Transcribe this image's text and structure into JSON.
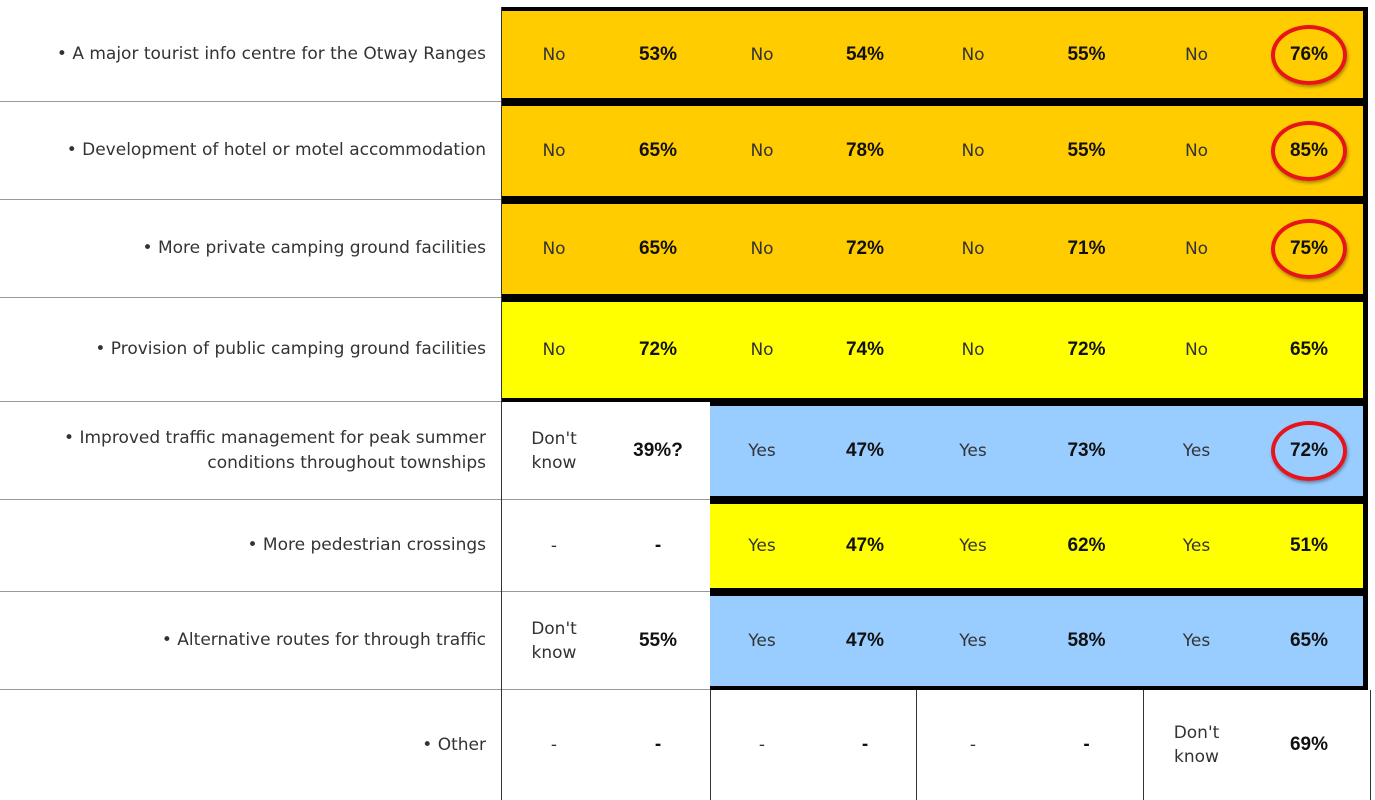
{
  "table": {
    "rows": [
      {
        "label": "• A major tourist info centre for the Otway Ranges",
        "cells": [
          "No",
          "53%",
          "No",
          "54%",
          "No",
          "55%",
          "No",
          "76%"
        ],
        "fill": "#ffcc00",
        "fill_start": 0,
        "circled": true
      },
      {
        "label": "• Development of hotel or motel accommodation",
        "cells": [
          "No",
          "65%",
          "No",
          "78%",
          "No",
          "55%",
          "No",
          "85%"
        ],
        "fill": "#ffcc00",
        "fill_start": 0,
        "circled": true
      },
      {
        "label": "• More private camping ground facilities",
        "cells": [
          "No",
          "65%",
          "No",
          "72%",
          "No",
          "71%",
          "No",
          "75%"
        ],
        "fill": "#ffcc00",
        "fill_start": 0,
        "circled": true
      },
      {
        "label": "• Provision of public camping ground facilities",
        "cells": [
          "No",
          "72%",
          "No",
          "74%",
          "No",
          "72%",
          "No",
          "65%"
        ],
        "fill": "#ffff00",
        "fill_start": 0,
        "circled": false
      },
      {
        "label": "• Improved traffic management for peak summer conditions throughout townships",
        "cells": [
          "Don't know",
          "39%?",
          "Yes",
          "47%",
          "Yes",
          "73%",
          "Yes",
          "72%"
        ],
        "fill": "#99ccff",
        "fill_start": 2,
        "circled": true
      },
      {
        "label": "• More pedestrian crossings",
        "cells": [
          "-",
          "-",
          "Yes",
          "47%",
          "Yes",
          "62%",
          "Yes",
          "51%"
        ],
        "fill": "#ffff00",
        "fill_start": 2,
        "circled": false
      },
      {
        "label": "• Alternative routes for through traffic",
        "cells": [
          "Don't know",
          "55%",
          "Yes",
          "47%",
          "Yes",
          "58%",
          "Yes",
          "65%"
        ],
        "fill": "#99ccff",
        "fill_start": 2,
        "circled": false
      },
      {
        "label": "• Other",
        "cells": [
          "-",
          "-",
          "-",
          "-",
          "-",
          "-",
          "Don't know",
          "69%"
        ],
        "fill": null,
        "fill_start": 8,
        "circled": false
      }
    ]
  }
}
